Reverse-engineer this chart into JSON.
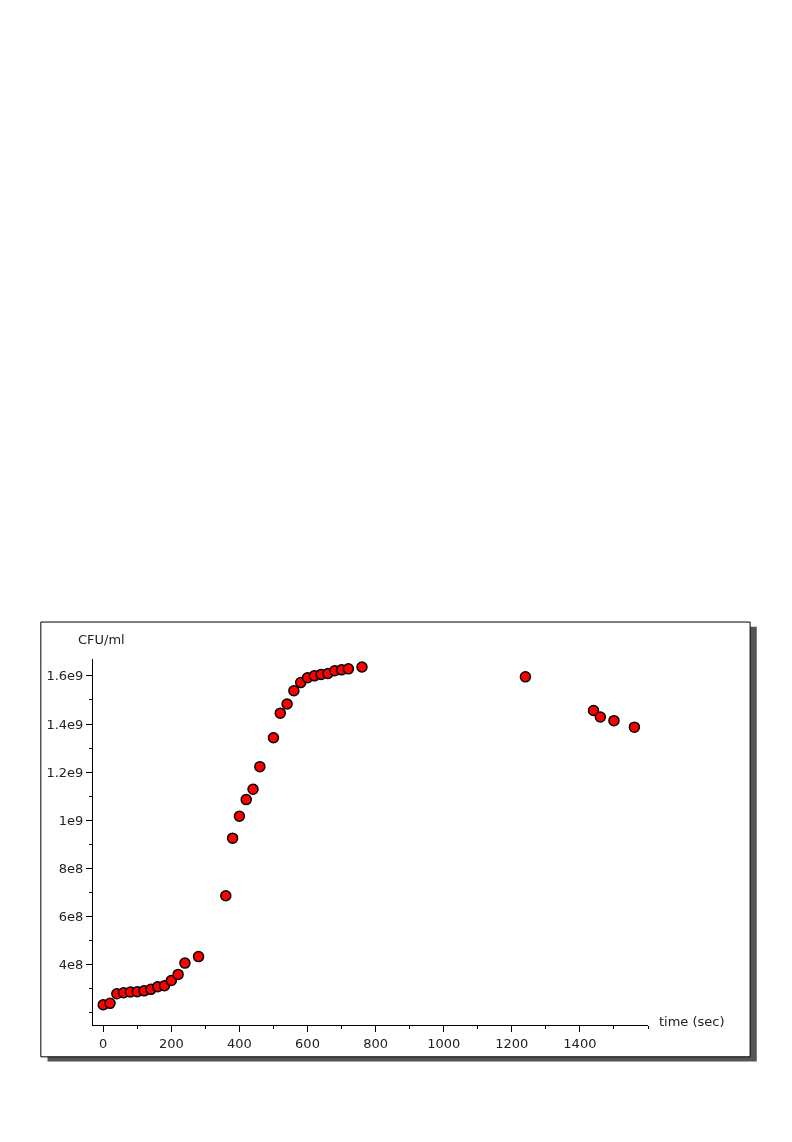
{
  "chart_data": {
    "type": "scatter",
    "xlabel": "time (sec)",
    "ylabel": "CFU/ml",
    "x": [
      0,
      20,
      40,
      60,
      80,
      100,
      120,
      140,
      160,
      180,
      200,
      220,
      240,
      280,
      360,
      380,
      400,
      420,
      440,
      460,
      500,
      520,
      540,
      560,
      580,
      600,
      620,
      640,
      660,
      680,
      700,
      720,
      760,
      1240,
      1440,
      1460,
      1500,
      1560
    ],
    "series": [
      {
        "color": "#ff0000",
        "values": [
          234000000.0,
          240000000.0,
          280000000.0,
          284000000.0,
          287000000.0,
          288000000.0,
          292000000.0,
          298000000.0,
          309000000.0,
          313000000.0,
          335000000.0,
          360000000.0,
          407000000.0,
          434000000.0,
          687000000.0,
          926000000.0,
          1017000000.0,
          1086000000.0,
          1129000000.0,
          1223000000.0,
          1343000000.0,
          1445000000.0,
          1483000000.0,
          1538000000.0,
          1572000000.0,
          1592000000.0,
          1600000000.0,
          1606000000.0,
          1610000000.0,
          1621000000.0,
          1625000000.0,
          1629000000.0,
          1637000000.0,
          1596000000.0,
          1456000000.0,
          1429000000.0,
          1414000000.0,
          1387000000.0
        ]
      }
    ],
    "xlim": [
      -30,
      1600
    ],
    "ylim": [
      150000000.0,
      1670000000.0
    ],
    "xticks": [
      0,
      200,
      400,
      600,
      800,
      1000,
      1200,
      1400
    ],
    "yticks": [
      {
        "value": 400000000.0,
        "label": "4e8"
      },
      {
        "value": 600000000.0,
        "label": "6e8"
      },
      {
        "value": 800000000.0,
        "label": "8e8"
      },
      {
        "value": 1000000000.0,
        "label": "1e9"
      },
      {
        "value": 1200000000.0,
        "label": "1.2e9"
      },
      {
        "value": 1400000000.0,
        "label": "1.4e9"
      },
      {
        "value": 1600000000.0,
        "label": "1.6e9"
      }
    ],
    "marker": "circle"
  }
}
